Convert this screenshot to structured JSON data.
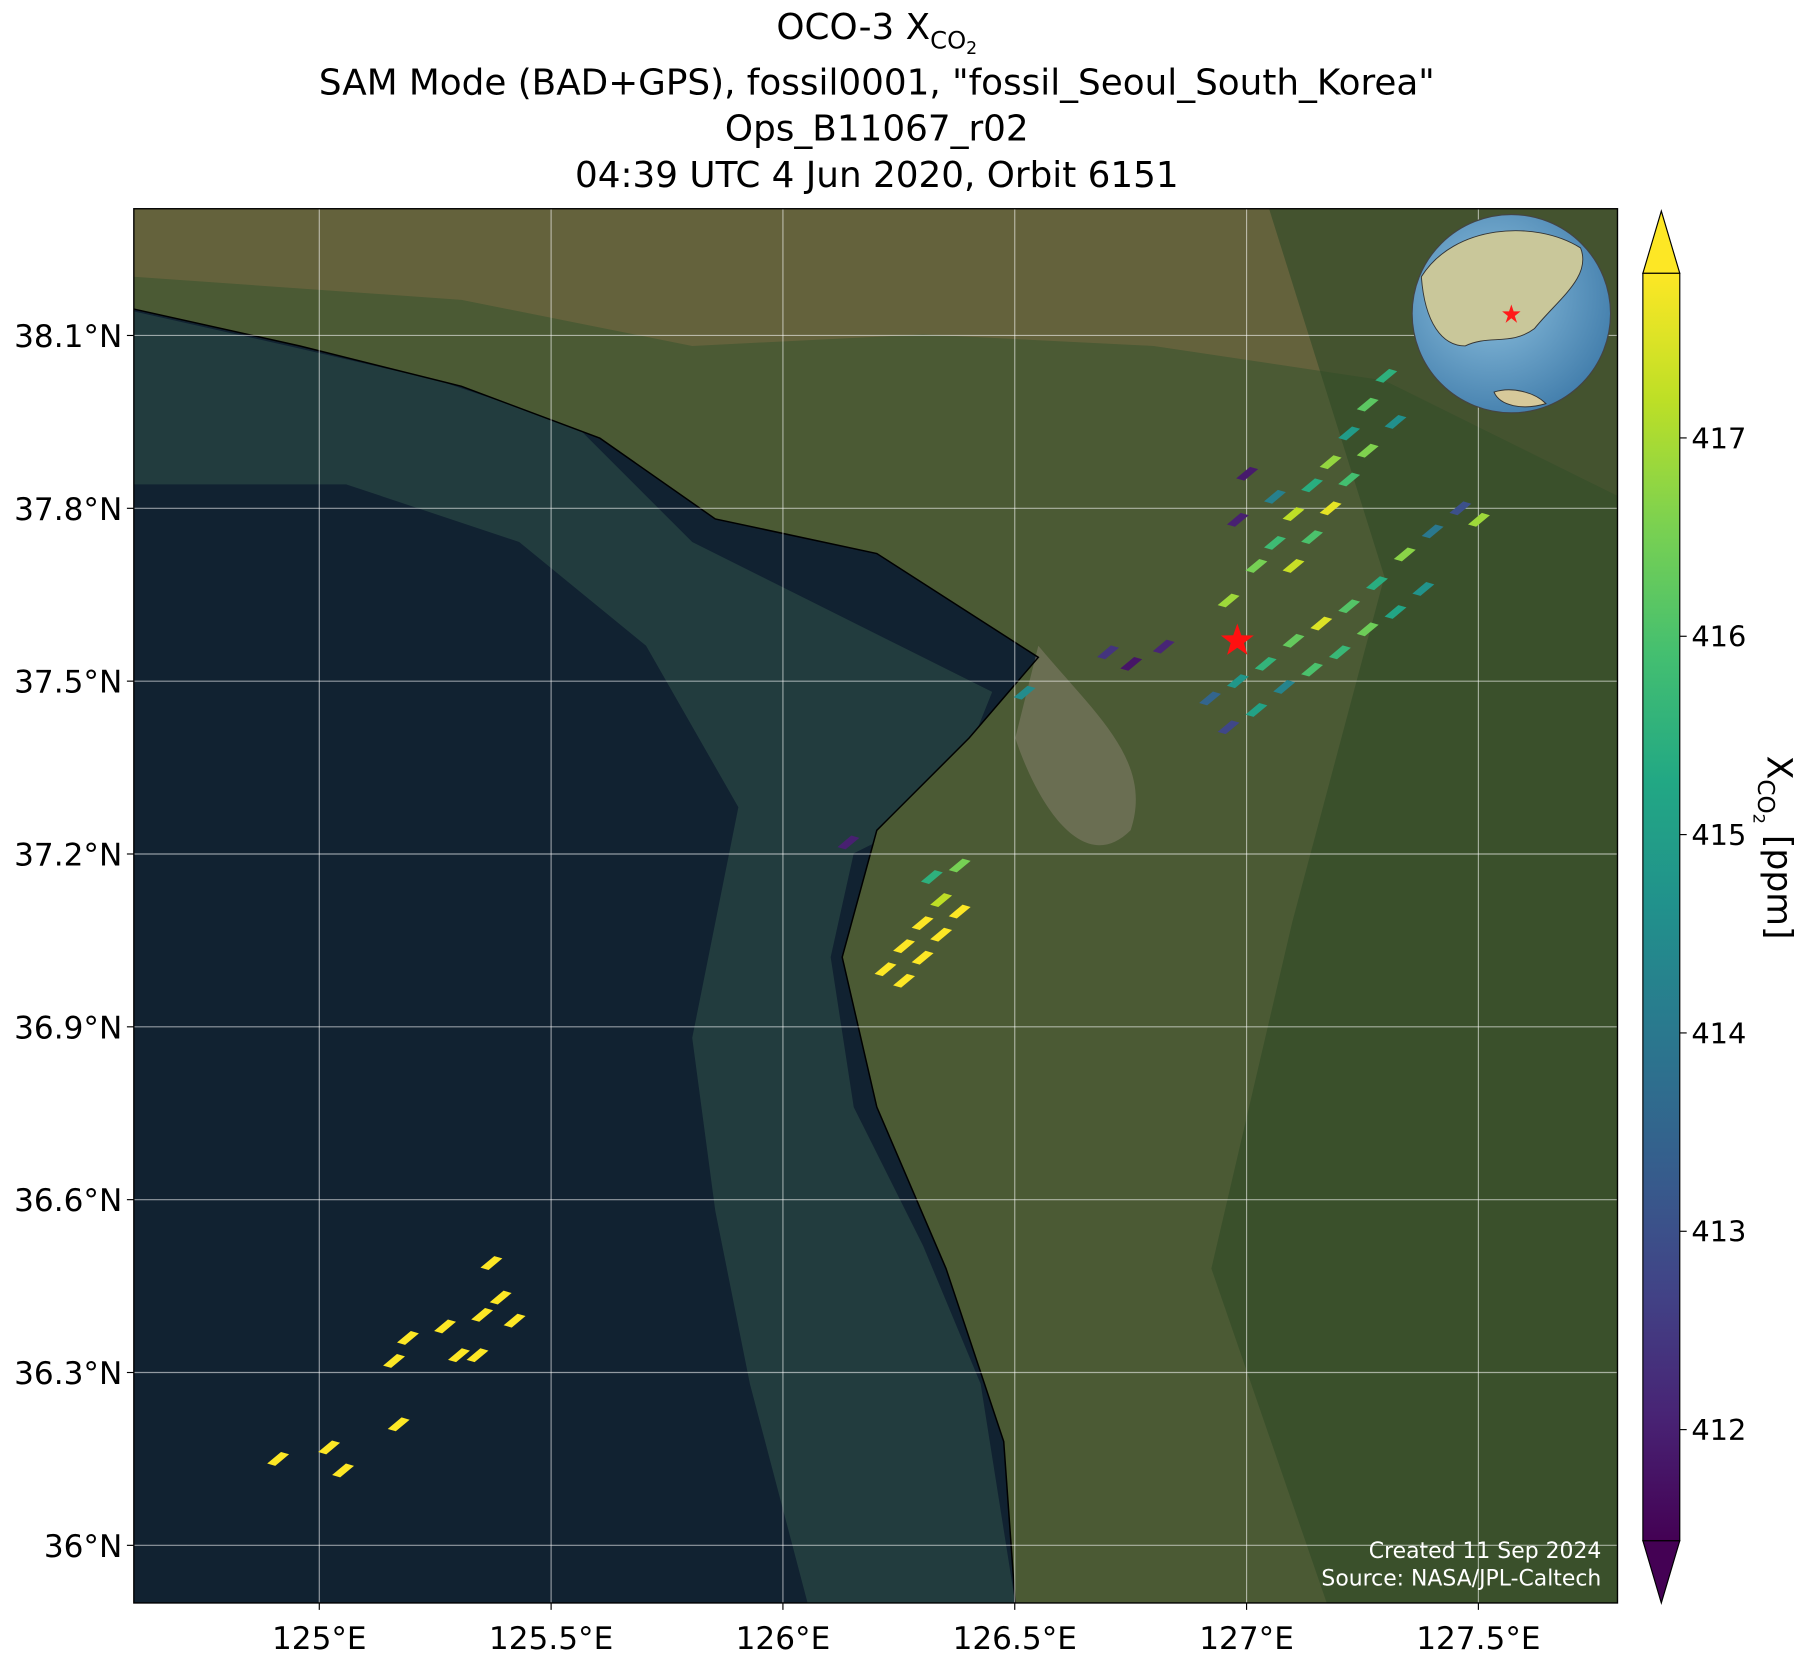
{
  "chart_data": {
    "type": "map",
    "title": {
      "lead": "OCO-3 X",
      "sub": "CO",
      "subsub": "2"
    },
    "subtitle": [
      "SAM Mode (BAD+GPS), fossil0001, \"fossil_Seoul_South_Korea\"",
      "Ops_B11067_r02",
      "04:39 UTC 4 Jun 2020, Orbit 6151"
    ],
    "xlim": [
      124.6,
      127.8
    ],
    "ylim": [
      35.9,
      38.32
    ],
    "xticks": [
      {
        "value": 125,
        "label": "125°E"
      },
      {
        "value": 125.5,
        "label": "125.5°E"
      },
      {
        "value": 126,
        "label": "126°E"
      },
      {
        "value": 126.5,
        "label": "126.5°E"
      },
      {
        "value": 127,
        "label": "127°E"
      },
      {
        "value": 127.5,
        "label": "127.5°E"
      }
    ],
    "yticks": [
      {
        "value": 36,
        "label": "36°N"
      },
      {
        "value": 36.3,
        "label": "36.3°N"
      },
      {
        "value": 36.6,
        "label": "36.6°N"
      },
      {
        "value": 36.9,
        "label": "36.9°N"
      },
      {
        "value": 37.2,
        "label": "37.2°N"
      },
      {
        "value": 37.5,
        "label": "37.5°N"
      },
      {
        "value": 37.8,
        "label": "37.8°N"
      },
      {
        "value": 38.1,
        "label": "38.1°N"
      }
    ],
    "grid": true,
    "colormap": "viridis",
    "clim": [
      411.44,
      417.83
    ],
    "cticks": [
      412,
      413,
      414,
      415,
      416,
      417
    ],
    "colorbar_label": {
      "lead": "X",
      "sub": "CO",
      "subsub": "2",
      "tail": " [ppm]"
    },
    "target": {
      "lon": 126.98,
      "lat": 37.57
    },
    "soundings": {
      "lon": [
        127.02,
        127.06,
        127.1,
        127.14,
        127.18,
        127.22,
        127.26,
        127.3,
        127.1,
        127.14,
        127.18,
        127.22,
        127.26,
        127.32,
        126.98,
        127.0,
        127.06,
        126.96,
        126.92,
        126.98,
        127.04,
        127.1,
        127.16,
        127.22,
        127.28,
        127.34,
        127.4,
        127.46,
        126.96,
        127.02,
        127.08,
        127.14,
        127.2,
        127.26,
        127.32,
        127.38,
        127.5,
        126.75,
        126.82,
        126.7,
        126.52,
        126.14,
        126.22,
        126.26,
        126.3,
        126.34,
        126.38,
        126.26,
        126.3,
        126.34,
        126.38,
        126.32,
        124.91,
        125.02,
        125.05,
        125.17,
        125.16,
        125.19,
        125.27,
        125.3,
        125.34,
        125.35,
        125.39,
        125.42,
        125.37
      ],
      "lat": [
        37.7,
        37.74,
        37.79,
        37.84,
        37.88,
        37.93,
        37.98,
        38.03,
        37.7,
        37.75,
        37.8,
        37.85,
        37.9,
        37.95,
        37.78,
        37.86,
        37.82,
        37.64,
        37.47,
        37.5,
        37.53,
        37.57,
        37.6,
        37.63,
        37.67,
        37.72,
        37.76,
        37.8,
        37.42,
        37.45,
        37.49,
        37.52,
        37.55,
        37.59,
        37.62,
        37.66,
        37.78,
        37.53,
        37.56,
        37.55,
        37.48,
        37.22,
        37.0,
        37.04,
        37.08,
        37.12,
        37.18,
        36.98,
        37.02,
        37.06,
        37.1,
        37.16,
        36.15,
        36.17,
        36.13,
        36.21,
        36.32,
        36.36,
        36.38,
        36.33,
        36.33,
        36.4,
        36.43,
        36.39,
        36.49
      ],
      "xco2": [
        416.5,
        415.8,
        417.2,
        415.4,
        416.8,
        414.9,
        416.2,
        415.5,
        417.3,
        416.0,
        417.6,
        415.9,
        416.6,
        414.6,
        412.0,
        411.9,
        414.2,
        416.9,
        413.5,
        414.8,
        415.6,
        416.3,
        417.5,
        416.1,
        415.4,
        416.7,
        414.0,
        413.0,
        412.8,
        415.1,
        414.3,
        416.0,
        415.7,
        416.4,
        415.2,
        414.7,
        416.9,
        411.8,
        412.1,
        412.4,
        414.5,
        412.0,
        417.9,
        417.9,
        417.9,
        417.2,
        416.5,
        417.9,
        417.9,
        417.9,
        417.9,
        415.5,
        417.9,
        417.9,
        417.9,
        417.9,
        417.9,
        417.9,
        417.9,
        417.9,
        417.9,
        417.9,
        417.9,
        417.9,
        417.9
      ]
    },
    "credits": [
      "Created 11 Sep 2024",
      "Source: NASA/JPL-Caltech"
    ]
  }
}
